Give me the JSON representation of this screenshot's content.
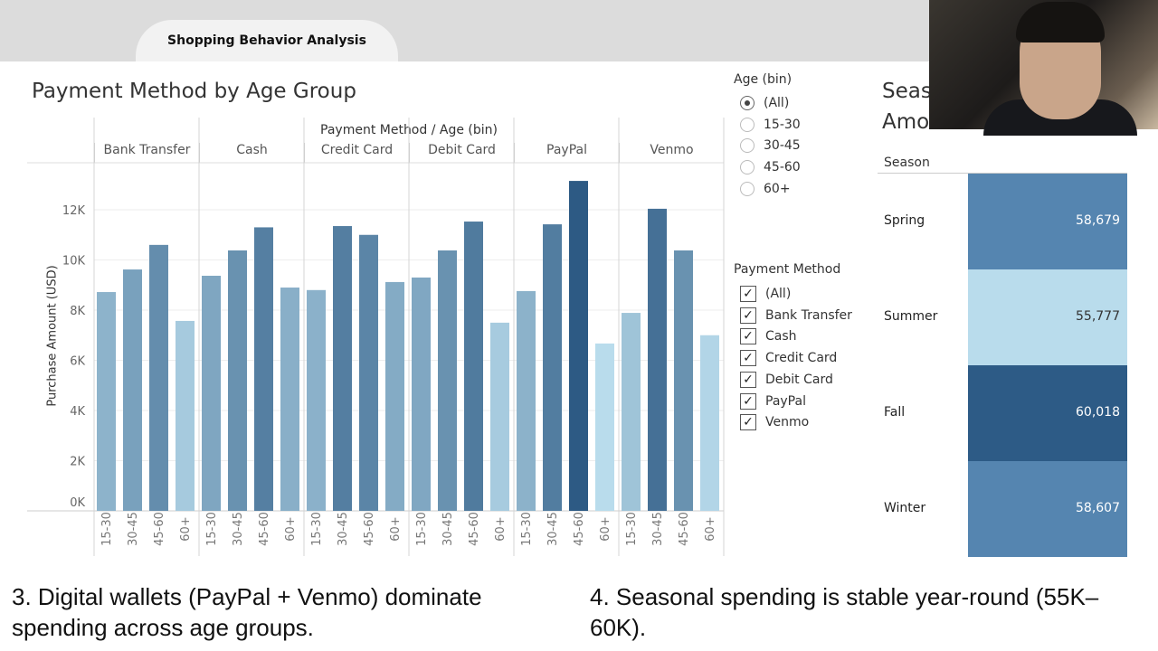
{
  "header": {
    "tab_label": "Shopping Behavior Analysis"
  },
  "main_chart": {
    "title": "Payment Method by Age Group"
  },
  "chart_data": {
    "type": "bar",
    "title": "Payment Method by Age Group",
    "xlabel": "Payment Method / Age (bin)",
    "ylabel": "Purchase Amount (USD)",
    "ylim": [
      0,
      13800
    ],
    "yticks": [
      "0K",
      "2K",
      "4K",
      "6K",
      "8K",
      "10K",
      "12K"
    ],
    "ytick_values": [
      0,
      2000,
      4000,
      6000,
      8000,
      10000,
      12000
    ],
    "grid": true,
    "groups": [
      "Bank Transfer",
      "Cash",
      "Credit Card",
      "Debit Card",
      "PayPal",
      "Venmo"
    ],
    "categories": [
      "15-30",
      "30-45",
      "45-60",
      "60+"
    ],
    "values": [
      [
        8720,
        9620,
        10600,
        7570
      ],
      [
        9370,
        10380,
        11300,
        8900
      ],
      [
        8800,
        11350,
        11000,
        9120
      ],
      [
        9300,
        10380,
        11530,
        7500
      ],
      [
        8760,
        11420,
        13150,
        6670
      ],
      [
        7890,
        12040,
        10380,
        7000
      ]
    ],
    "color_low": "#b9dcec",
    "color_high": "#2d5a84"
  },
  "filters": {
    "age": {
      "title": "Age (bin)",
      "options": [
        "(All)",
        "15-30",
        "30-45",
        "45-60",
        "60+"
      ],
      "selected": "(All)"
    },
    "payment": {
      "title": "Payment Method",
      "options": [
        "(All)",
        "Bank Transfer",
        "Cash",
        "Credit Card",
        "Debit Card",
        "PayPal",
        "Venmo"
      ],
      "checked_mark": "✓"
    }
  },
  "season_chart": {
    "title_line1": "Seas",
    "title_line2": "Amount",
    "column_header": "Season",
    "rows": [
      {
        "season": "Spring",
        "value": "58,679",
        "color": "#5585b0",
        "text_color": "#ffffff"
      },
      {
        "season": "Summer",
        "value": "55,777",
        "color": "#b9dcec",
        "text_color": "#333333"
      },
      {
        "season": "Fall",
        "value": "60,018",
        "color": "#2d5b86",
        "text_color": "#ffffff"
      },
      {
        "season": "Winter",
        "value": "58,607",
        "color": "#5585b0",
        "text_color": "#ffffff"
      }
    ]
  },
  "captions": {
    "left": "3. Digital wallets (PayPal + Venmo) dominate spending across age groups.",
    "right": "4. Seasonal spending is stable year-round (55K–60K)."
  }
}
